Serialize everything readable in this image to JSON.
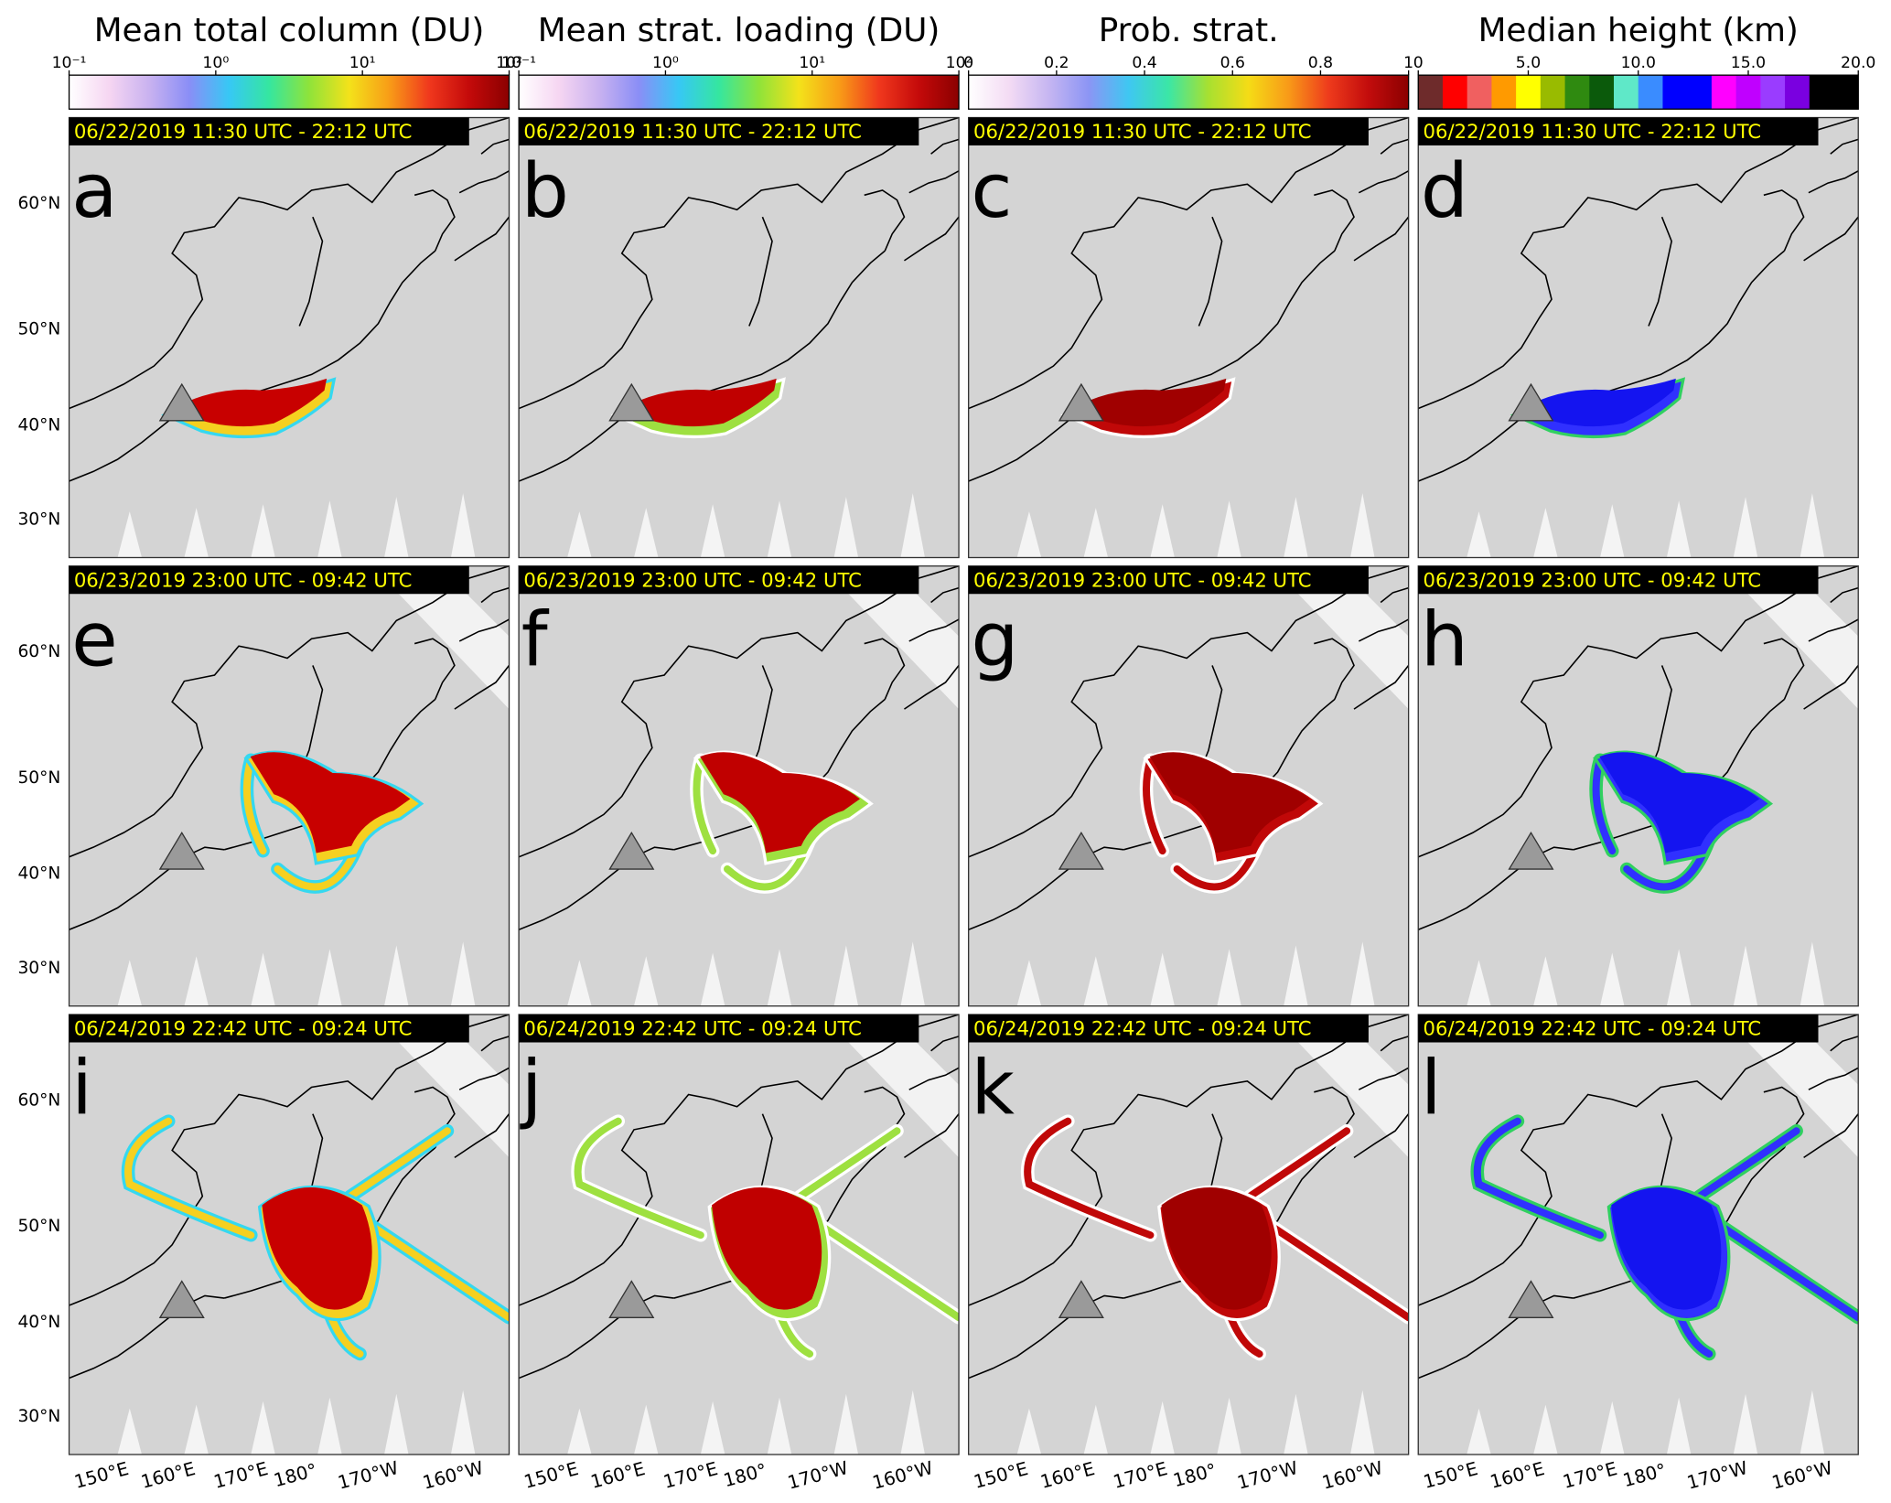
{
  "columns": [
    {
      "title": "Mean total column (DU)",
      "colorbar": {
        "scale": "log",
        "lim": [
          0.1,
          100
        ],
        "ticks": [
          {
            "value": 0.1,
            "label": "10⁻¹"
          },
          {
            "value": 1,
            "label": "10⁰"
          },
          {
            "value": 10,
            "label": "10¹"
          },
          {
            "value": 100,
            "label": "10²"
          }
        ],
        "colors": [
          "#ffffff",
          "#f6d6f2",
          "#c9b2f0",
          "#8a8ef6",
          "#37c8f5",
          "#35e6a0",
          "#8fe33a",
          "#f3e21a",
          "#f89d17",
          "#f0381d",
          "#c40a0a",
          "#8b0000"
        ]
      }
    },
    {
      "title": "Mean strat. loading (DU)",
      "colorbar": {
        "scale": "log",
        "lim": [
          0.1,
          100
        ],
        "ticks": [
          {
            "value": 0.1,
            "label": "10⁻¹"
          },
          {
            "value": 1,
            "label": "10⁰"
          },
          {
            "value": 10,
            "label": "10¹"
          },
          {
            "value": 100,
            "label": "10²"
          }
        ],
        "colors": [
          "#ffffff",
          "#f6d6f2",
          "#c9b2f0",
          "#8a8ef6",
          "#37c8f5",
          "#35e6a0",
          "#8fe33a",
          "#f3e21a",
          "#f89d17",
          "#f0381d",
          "#c40a0a",
          "#8b0000"
        ]
      }
    },
    {
      "title": "Prob. strat.",
      "colorbar": {
        "scale": "linear",
        "lim": [
          0,
          1
        ],
        "ticks": [
          0,
          0.2,
          0.4,
          0.6,
          0.8,
          1
        ],
        "colors": [
          "#ffffff",
          "#f4dcf4",
          "#c6b6f2",
          "#8c95f4",
          "#3fc7f2",
          "#3be6a6",
          "#a8e030",
          "#f5dc16",
          "#f89a18",
          "#ee3b1c",
          "#c20c0c",
          "#8b0000"
        ]
      }
    },
    {
      "title": "Median height (km)",
      "colorbar": {
        "scale": "linear",
        "lim": [
          0,
          20
        ],
        "ticks": [
          0,
          {
            "value": 5,
            "label": "5.0"
          },
          {
            "value": 10,
            "label": "10.0"
          },
          {
            "value": 15,
            "label": "15.0"
          },
          {
            "value": 20,
            "label": "20.0"
          }
        ],
        "colors": [
          "#6e2b2b",
          "#ff0000",
          "#f06060",
          "#ff9a00",
          "#ffff00",
          "#99bb00",
          "#2f8a10",
          "#0b5a0b",
          "#5fe8c8",
          "#3a8cff",
          "#0000ff",
          "#0000ff",
          "#ff00ff",
          "#c000ff",
          "#9a3cff",
          "#7a00e0",
          "#000000",
          "#000000"
        ],
        "discrete": true
      }
    }
  ],
  "rows": [
    {
      "date": "06/22/2019 11:30 UTC - 22:12 UTC",
      "letters": [
        "a",
        "b",
        "c",
        "d"
      ]
    },
    {
      "date": "06/23/2019 23:00 UTC - 09:42 UTC",
      "letters": [
        "e",
        "f",
        "g",
        "h"
      ]
    },
    {
      "date": "06/24/2019 22:42 UTC - 09:24 UTC",
      "letters": [
        "i",
        "j",
        "k",
        "l"
      ]
    }
  ],
  "lat_labels": [
    "60°N",
    "50°N",
    "40°N",
    "30°N"
  ],
  "lon_labels": [
    "150°E",
    "160°E",
    "170°E",
    "180°",
    "170°W",
    "160°W"
  ]
}
